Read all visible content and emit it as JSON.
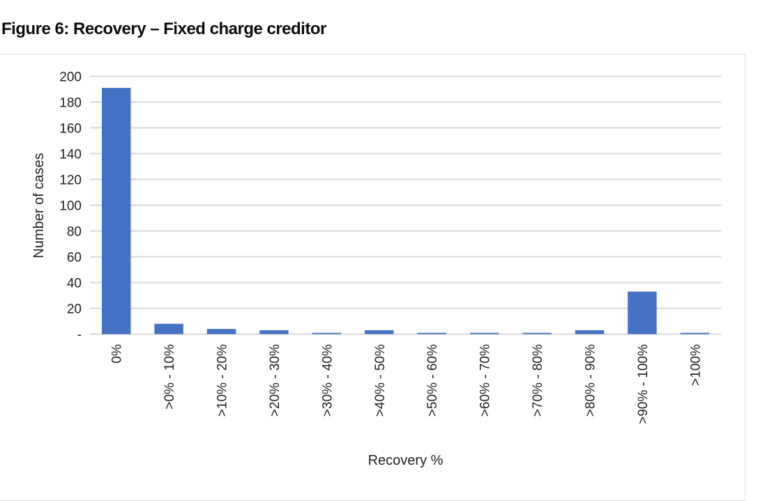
{
  "title": "Figure 6: Recovery – Fixed charge creditor",
  "chart_data": {
    "type": "bar",
    "xlabel": "Recovery %",
    "ylabel": "Number of cases",
    "categories": [
      "0%",
      ">0% - 10%",
      ">10% - 20%",
      ">20% - 30%",
      ">30% - 40%",
      ">40% - 50%",
      ">50% - 60%",
      ">60% - 70%",
      ">70% - 80%",
      ">80% - 90%",
      ">90% - 100%",
      ">100%"
    ],
    "values": [
      191,
      8,
      4,
      3,
      1,
      3,
      1,
      1,
      1,
      3,
      33,
      1
    ],
    "ylim": [
      0,
      200
    ],
    "yticks": [
      "-",
      "20",
      "40",
      "60",
      "80",
      "100",
      "120",
      "140",
      "160",
      "180",
      "200"
    ],
    "grid": true,
    "legend": "none",
    "bar_color": "#4472c4"
  }
}
